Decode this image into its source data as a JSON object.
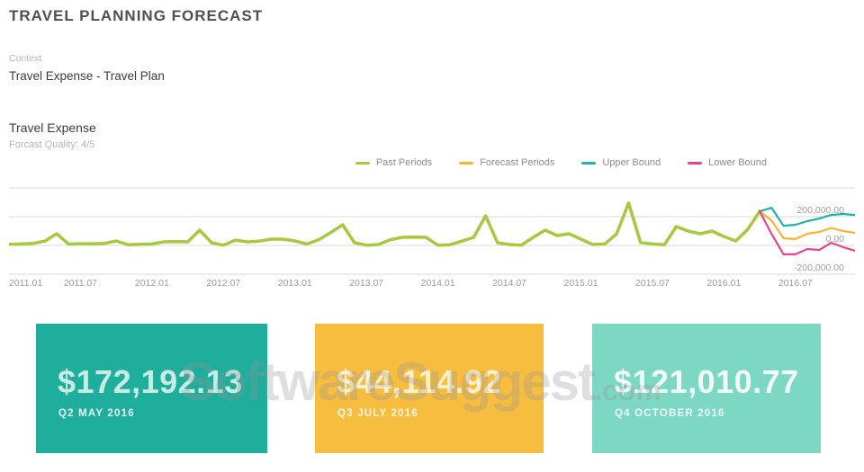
{
  "page": {
    "title": "TRAVEL PLANNING FORECAST",
    "context_label": "Context",
    "context_value": "Travel Expense - Travel Plan"
  },
  "section": {
    "title": "Travel Expense",
    "quality": "Forcast Quality: 4/5"
  },
  "legend": [
    {
      "label": "Past Periods",
      "color": "#a6c93e"
    },
    {
      "label": "Forecast Periods",
      "color": "#f9b435"
    },
    {
      "label": "Upper Bound",
      "color": "#1fb3ab"
    },
    {
      "label": "Lower Bound",
      "color": "#e8468b"
    }
  ],
  "chart_data": {
    "type": "line",
    "title": "Travel Expense forecast",
    "unit": "USD",
    "x_start": "2011.01",
    "x_interval": "monthly",
    "total_points": 72,
    "x_label_step": 6,
    "x_labels": [
      "2011.01",
      "2011.07",
      "2012.01",
      "2012.07",
      "2013.01",
      "2013.07",
      "2014.01",
      "2014.07",
      "2015.01",
      "2015.07",
      "2016.01",
      "2016.07"
    ],
    "y_ticks": [
      {
        "label": "200,000.00",
        "value": 200000
      },
      {
        "label": "0.00",
        "value": 0
      },
      {
        "label": "-200,000.00",
        "value": -200000
      }
    ],
    "gridlines": [
      400000,
      200000,
      0,
      -200000
    ],
    "ylim": [
      -250000,
      430000
    ],
    "grid": true,
    "legend_position": "top-right",
    "series": [
      {
        "name": "Past Periods",
        "color": "#a6c93e",
        "width": 3.5,
        "start_index": 0,
        "values": [
          8000,
          10000,
          14000,
          30000,
          81000,
          10000,
          12000,
          12000,
          14000,
          31000,
          5000,
          8000,
          10000,
          25000,
          26000,
          25000,
          106000,
          19000,
          2000,
          37000,
          25000,
          30000,
          44000,
          44000,
          31000,
          10000,
          40000,
          90000,
          144000,
          19000,
          2000,
          6000,
          40000,
          56000,
          58000,
          56000,
          2000,
          5000,
          30000,
          56000,
          206000,
          19000,
          6000,
          2000,
          56000,
          106000,
          69000,
          81000,
          44000,
          6000,
          10000,
          81000,
          295000,
          20000,
          10000,
          5000,
          131000,
          100000,
          81000,
          100000,
          62000,
          31000,
          112000,
          237000
        ]
      },
      {
        "name": "Forecast Periods",
        "color": "#f9b435",
        "width": 2.2,
        "start_index": 63,
        "values": [
          237000,
          172192,
          50000,
          44115,
          81000,
          94000,
          121011,
          100000,
          87000
        ]
      },
      {
        "name": "Upper Bound",
        "color": "#1fb3ab",
        "width": 2.2,
        "start_index": 63,
        "values": [
          237000,
          262000,
          137000,
          144000,
          169000,
          187000,
          212000,
          219000,
          212000
        ]
      },
      {
        "name": "Lower Bound",
        "color": "#e8468b",
        "width": 2.2,
        "start_index": 63,
        "values": [
          237000,
          80000,
          -62000,
          -62000,
          -25000,
          -31000,
          19000,
          -12000,
          -37000
        ]
      }
    ]
  },
  "cards": [
    {
      "amount": "$172,192.13",
      "period": "Q2 MAY 2016",
      "bg": "#1fad9c",
      "amount_color": "#c9ebe4"
    },
    {
      "amount": "$44,114.92",
      "period": "Q3 JULY 2016",
      "bg": "#f7bd3e",
      "amount_color": "#fdf1d3"
    },
    {
      "amount": "$121,010.77",
      "period": "Q4 OCTOBER 2016",
      "bg": "#7cd7c3",
      "amount_color": "#f0fbf8"
    }
  ],
  "watermark": {
    "text": "SoftwareSuggest",
    "suffix": ".com"
  }
}
